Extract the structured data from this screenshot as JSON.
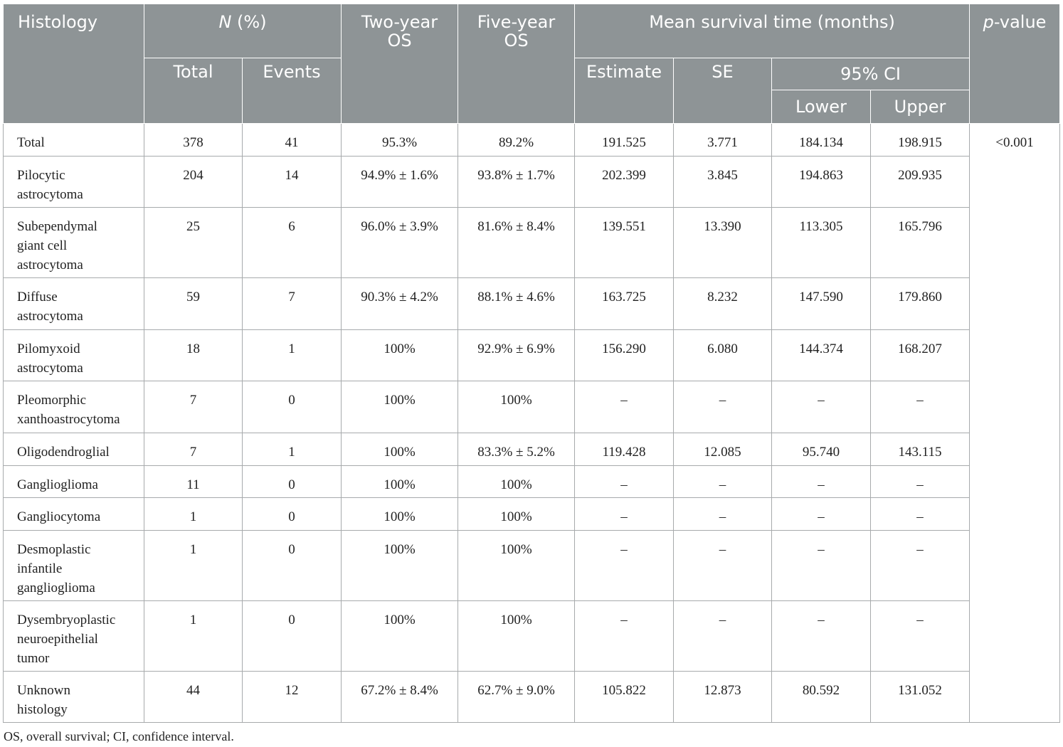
{
  "header": {
    "histology": "Histology",
    "n_italic": "N",
    "n_pct": " (%)",
    "two_year": "Two-year OS",
    "five_year": "Five-year OS",
    "mean_survival": "Mean survival time (months)",
    "p_italic": "p",
    "p_value": "-value",
    "total": "Total",
    "events": "Events",
    "estimate": "Estimate",
    "se": "SE",
    "ci": "95% CI",
    "lower": "Lower",
    "upper": "Upper"
  },
  "rows": [
    {
      "histology": "Total",
      "total": "378",
      "events": "41",
      "two_year": "95.3%",
      "five_year": "89.2%",
      "estimate": "191.525",
      "se": "3.771",
      "lower": "184.134",
      "upper": "198.915"
    },
    {
      "histology": "Pilocytic astrocytoma",
      "total": "204",
      "events": "14",
      "two_year": "94.9% ± 1.6%",
      "five_year": "93.8% ± 1.7%",
      "estimate": "202.399",
      "se": "3.845",
      "lower": "194.863",
      "upper": "209.935"
    },
    {
      "histology": "Subependymal giant cell astrocytoma",
      "total": "25",
      "events": "6",
      "two_year": "96.0% ± 3.9%",
      "five_year": "81.6% ± 8.4%",
      "estimate": "139.551",
      "se": "13.390",
      "lower": "113.305",
      "upper": "165.796"
    },
    {
      "histology": "Diffuse astrocytoma",
      "total": "59",
      "events": "7",
      "two_year": "90.3% ± 4.2%",
      "five_year": "88.1% ± 4.6%",
      "estimate": "163.725",
      "se": "8.232",
      "lower": "147.590",
      "upper": "179.860"
    },
    {
      "histology": "Pilomyxoid astrocytoma",
      "total": "18",
      "events": "1",
      "two_year": "100%",
      "five_year": "92.9% ± 6.9%",
      "estimate": "156.290",
      "se": "6.080",
      "lower": "144.374",
      "upper": "168.207"
    },
    {
      "histology": "Pleomorphic xanthoastrocytoma",
      "total": "7",
      "events": "0",
      "two_year": "100%",
      "five_year": "100%",
      "estimate": "–",
      "se": "–",
      "lower": "–",
      "upper": "–"
    },
    {
      "histology": "Oligodendroglial",
      "total": "7",
      "events": "1",
      "two_year": "100%",
      "five_year": "83.3% ± 5.2%",
      "estimate": "119.428",
      "se": "12.085",
      "lower": "95.740",
      "upper": "143.115"
    },
    {
      "histology": "Ganglioglioma",
      "total": "11",
      "events": "0",
      "two_year": "100%",
      "five_year": "100%",
      "estimate": "–",
      "se": "–",
      "lower": "–",
      "upper": "–"
    },
    {
      "histology": "Gangliocytoma",
      "total": "1",
      "events": "0",
      "two_year": "100%",
      "five_year": "100%",
      "estimate": "–",
      "se": "–",
      "lower": "–",
      "upper": "–"
    },
    {
      "histology": "Desmoplastic infantile ganglioglioma",
      "total": "1",
      "events": "0",
      "two_year": "100%",
      "five_year": "100%",
      "estimate": "–",
      "se": "–",
      "lower": "–",
      "upper": "–"
    },
    {
      "histology": "Dysembryoplastic neuroepithelial tumor",
      "total": "1",
      "events": "0",
      "two_year": "100%",
      "five_year": "100%",
      "estimate": "–",
      "se": "–",
      "lower": "–",
      "upper": "–"
    },
    {
      "histology": "Unknown histology",
      "total": "44",
      "events": "12",
      "two_year": "67.2% ± 8.4%",
      "five_year": "62.7% ± 9.0%",
      "estimate": "105.822",
      "se": "12.873",
      "lower": "80.592",
      "upper": "131.052"
    }
  ],
  "p_value_cell": "<0.001",
  "footnote": "OS, overall survival; CI, confidence interval."
}
